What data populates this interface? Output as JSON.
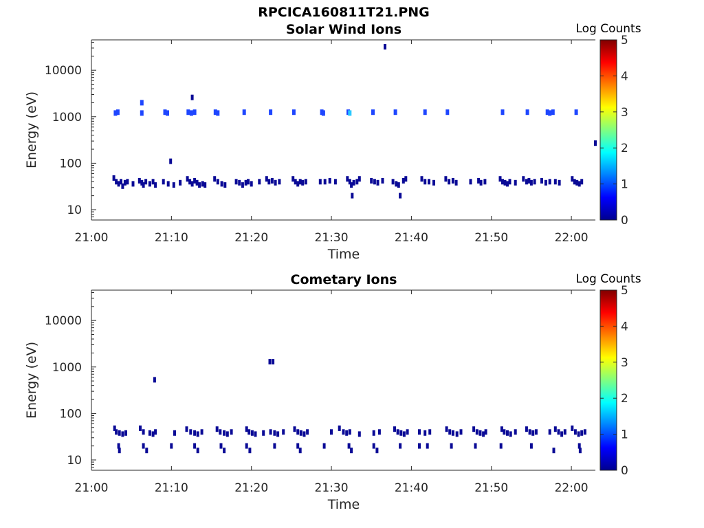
{
  "figure": {
    "filename": "RPCICA160811T21.PNG"
  },
  "colors": {
    "axis": "#262626",
    "level1": "#0a0a96",
    "level2": "#1e46ff",
    "level3": "#28c8ff",
    "colormap": [
      "#00008f",
      "#0000ff",
      "#0080ff",
      "#00ffff",
      "#80ff80",
      "#ffff00",
      "#ff8000",
      "#ff0000",
      "#800000"
    ]
  },
  "chart_data": [
    {
      "type": "heatmap",
      "title": "Solar Wind Ions",
      "xlabel": "Time",
      "ylabel": "Energy (eV)",
      "xticks": [
        "21:00",
        "21:10",
        "21:20",
        "21:30",
        "21:40",
        "21:50",
        "22:00"
      ],
      "xlim_minutes": [
        0,
        63
      ],
      "yticks": [
        {
          "label": "10",
          "value": 10
        },
        {
          "label": "100",
          "value": 100
        },
        {
          "label": "1000",
          "value": 1000
        },
        {
          "label": "10000",
          "value": 10000
        }
      ],
      "ylim": [
        6,
        45000
      ],
      "yscale": "log",
      "colorbar": {
        "title": "Log Counts",
        "range": [
          0,
          5
        ],
        "ticks": [
          "0",
          "1",
          "2",
          "3",
          "4",
          "5"
        ]
      },
      "cells": [
        [
          3.0,
          1200,
          2
        ],
        [
          3.3,
          1250,
          2
        ],
        [
          6.3,
          1200,
          2
        ],
        [
          6.3,
          2000,
          2
        ],
        [
          9.2,
          1250,
          2
        ],
        [
          9.5,
          1200,
          2
        ],
        [
          12.1,
          1250,
          2
        ],
        [
          12.5,
          1200,
          2
        ],
        [
          12.9,
          1250,
          2
        ],
        [
          12.6,
          2600,
          1
        ],
        [
          15.5,
          1250,
          2
        ],
        [
          15.8,
          1200,
          2
        ],
        [
          19.1,
          1250,
          2
        ],
        [
          22.4,
          1250,
          2
        ],
        [
          25.3,
          1250,
          2
        ],
        [
          28.8,
          1250,
          2
        ],
        [
          29.0,
          1200,
          2
        ],
        [
          32.1,
          1250,
          2
        ],
        [
          32.3,
          1200,
          3
        ],
        [
          35.2,
          1250,
          2
        ],
        [
          38.0,
          1250,
          2
        ],
        [
          41.7,
          1250,
          2
        ],
        [
          44.5,
          1250,
          2
        ],
        [
          51.4,
          1250,
          2
        ],
        [
          54.5,
          1250,
          2
        ],
        [
          57.0,
          1250,
          2
        ],
        [
          57.3,
          1200,
          2
        ],
        [
          57.7,
          1250,
          2
        ],
        [
          60.6,
          1250,
          2
        ],
        [
          63.0,
          270,
          1
        ],
        [
          9.9,
          110,
          1
        ],
        [
          36.7,
          32000,
          1
        ],
        [
          2.8,
          48,
          1
        ],
        [
          3.1,
          40,
          1
        ],
        [
          3.4,
          36,
          1
        ],
        [
          3.7,
          40,
          1
        ],
        [
          3.9,
          32,
          1
        ],
        [
          4.2,
          38,
          1
        ],
        [
          4.5,
          40,
          1
        ],
        [
          5.2,
          36,
          1
        ],
        [
          6.0,
          42,
          1
        ],
        [
          6.3,
          38,
          1
        ],
        [
          6.5,
          34,
          1
        ],
        [
          6.8,
          40,
          1
        ],
        [
          7.3,
          36,
          1
        ],
        [
          7.7,
          40,
          1
        ],
        [
          8.0,
          34,
          1
        ],
        [
          9.0,
          40,
          1
        ],
        [
          9.6,
          36,
          1
        ],
        [
          10.3,
          34,
          1
        ],
        [
          11.1,
          38,
          1
        ],
        [
          12.0,
          46,
          1
        ],
        [
          12.3,
          40,
          1
        ],
        [
          12.6,
          36,
          1
        ],
        [
          12.9,
          42,
          1
        ],
        [
          13.2,
          38,
          1
        ],
        [
          13.5,
          34,
          1
        ],
        [
          13.9,
          36,
          1
        ],
        [
          14.2,
          34,
          1
        ],
        [
          15.4,
          46,
          1
        ],
        [
          15.8,
          40,
          1
        ],
        [
          16.3,
          36,
          1
        ],
        [
          16.7,
          34,
          1
        ],
        [
          18.1,
          40,
          1
        ],
        [
          18.5,
          38,
          1
        ],
        [
          18.9,
          34,
          1
        ],
        [
          19.3,
          38,
          1
        ],
        [
          19.6,
          40,
          1
        ],
        [
          20.0,
          36,
          1
        ],
        [
          21.0,
          40,
          1
        ],
        [
          21.9,
          46,
          1
        ],
        [
          22.2,
          40,
          1
        ],
        [
          22.6,
          42,
          1
        ],
        [
          23.0,
          38,
          1
        ],
        [
          23.5,
          40,
          1
        ],
        [
          25.2,
          46,
          1
        ],
        [
          25.5,
          40,
          1
        ],
        [
          25.8,
          36,
          1
        ],
        [
          26.1,
          40,
          1
        ],
        [
          26.4,
          38,
          1
        ],
        [
          26.8,
          40,
          1
        ],
        [
          28.6,
          40,
          1
        ],
        [
          29.2,
          40,
          1
        ],
        [
          29.8,
          42,
          1
        ],
        [
          30.5,
          40,
          1
        ],
        [
          32.0,
          46,
          1
        ],
        [
          32.3,
          40,
          1
        ],
        [
          32.5,
          34,
          1
        ],
        [
          32.8,
          38,
          1
        ],
        [
          32.6,
          20,
          1
        ],
        [
          33.2,
          40,
          1
        ],
        [
          33.5,
          46,
          1
        ],
        [
          35.0,
          42,
          1
        ],
        [
          35.4,
          40,
          1
        ],
        [
          35.8,
          38,
          1
        ],
        [
          36.4,
          42,
          1
        ],
        [
          37.7,
          40,
          1
        ],
        [
          38.1,
          36,
          1
        ],
        [
          38.4,
          34,
          1
        ],
        [
          38.6,
          20,
          1
        ],
        [
          39.0,
          42,
          1
        ],
        [
          39.3,
          46,
          1
        ],
        [
          41.3,
          46,
          1
        ],
        [
          41.7,
          40,
          1
        ],
        [
          42.2,
          40,
          1
        ],
        [
          42.8,
          38,
          1
        ],
        [
          44.3,
          46,
          1
        ],
        [
          44.7,
          40,
          1
        ],
        [
          45.2,
          42,
          1
        ],
        [
          45.6,
          38,
          1
        ],
        [
          47.4,
          40,
          1
        ],
        [
          48.4,
          42,
          1
        ],
        [
          48.7,
          38,
          1
        ],
        [
          49.2,
          40,
          1
        ],
        [
          51.1,
          46,
          1
        ],
        [
          51.4,
          40,
          1
        ],
        [
          51.7,
          38,
          1
        ],
        [
          52.0,
          36,
          1
        ],
        [
          52.3,
          40,
          1
        ],
        [
          53.0,
          38,
          1
        ],
        [
          54.0,
          46,
          1
        ],
        [
          54.4,
          40,
          1
        ],
        [
          54.7,
          42,
          1
        ],
        [
          55.0,
          38,
          1
        ],
        [
          55.4,
          40,
          1
        ],
        [
          56.3,
          42,
          1
        ],
        [
          56.8,
          38,
          1
        ],
        [
          57.3,
          40,
          1
        ],
        [
          58.0,
          40,
          1
        ],
        [
          58.5,
          38,
          1
        ],
        [
          60.1,
          46,
          1
        ],
        [
          60.4,
          40,
          1
        ],
        [
          60.7,
          38,
          1
        ],
        [
          61.0,
          36,
          1
        ],
        [
          61.3,
          40,
          1
        ]
      ]
    },
    {
      "type": "heatmap",
      "title": "Cometary Ions",
      "xlabel": "Time",
      "ylabel": "Energy (eV)",
      "xticks": [
        "21:00",
        "21:10",
        "21:20",
        "21:30",
        "21:40",
        "21:50",
        "22:00"
      ],
      "xlim_minutes": [
        0,
        63
      ],
      "yticks": [
        {
          "label": "10",
          "value": 10
        },
        {
          "label": "100",
          "value": 100
        },
        {
          "label": "1000",
          "value": 1000
        },
        {
          "label": "10000",
          "value": 10000
        }
      ],
      "ylim": [
        6,
        45000
      ],
      "yscale": "log",
      "colorbar": {
        "title": "Log Counts",
        "range": [
          0,
          5
        ],
        "ticks": [
          "0",
          "1",
          "2",
          "3",
          "4",
          "5"
        ]
      },
      "cells": [
        [
          7.9,
          530,
          1
        ],
        [
          22.3,
          1300,
          1
        ],
        [
          22.7,
          1300,
          1
        ],
        [
          2.9,
          48,
          1
        ],
        [
          3.1,
          40,
          1
        ],
        [
          3.5,
          38,
          1
        ],
        [
          3.9,
          36,
          1
        ],
        [
          4.3,
          38,
          1
        ],
        [
          6.1,
          48,
          1
        ],
        [
          6.5,
          40,
          1
        ],
        [
          7.3,
          38,
          1
        ],
        [
          7.7,
          36,
          1
        ],
        [
          8.0,
          40,
          1
        ],
        [
          10.4,
          38,
          1
        ],
        [
          11.9,
          46,
          1
        ],
        [
          12.4,
          40,
          1
        ],
        [
          12.9,
          38,
          1
        ],
        [
          13.3,
          36,
          1
        ],
        [
          13.8,
          40,
          1
        ],
        [
          15.7,
          46,
          1
        ],
        [
          16.1,
          40,
          1
        ],
        [
          16.6,
          38,
          1
        ],
        [
          17.0,
          36,
          1
        ],
        [
          17.5,
          40,
          1
        ],
        [
          19.4,
          46,
          1
        ],
        [
          19.7,
          40,
          1
        ],
        [
          20.1,
          38,
          1
        ],
        [
          20.5,
          36,
          1
        ],
        [
          21.5,
          38,
          1
        ],
        [
          22.4,
          40,
          1
        ],
        [
          22.9,
          38,
          1
        ],
        [
          23.3,
          36,
          1
        ],
        [
          24.0,
          40,
          1
        ],
        [
          25.4,
          46,
          1
        ],
        [
          25.8,
          40,
          1
        ],
        [
          26.2,
          38,
          1
        ],
        [
          26.6,
          36,
          1
        ],
        [
          27.0,
          40,
          1
        ],
        [
          30.0,
          40,
          1
        ],
        [
          31.0,
          48,
          1
        ],
        [
          31.5,
          40,
          1
        ],
        [
          31.9,
          38,
          1
        ],
        [
          32.3,
          40,
          1
        ],
        [
          33.5,
          36,
          1
        ],
        [
          35.3,
          38,
          1
        ],
        [
          36.0,
          40,
          1
        ],
        [
          37.9,
          46,
          1
        ],
        [
          38.3,
          40,
          1
        ],
        [
          38.7,
          38,
          1
        ],
        [
          39.1,
          36,
          1
        ],
        [
          39.5,
          40,
          1
        ],
        [
          41.0,
          40,
          1
        ],
        [
          41.7,
          38,
          1
        ],
        [
          42.3,
          40,
          1
        ],
        [
          44.4,
          46,
          1
        ],
        [
          44.8,
          40,
          1
        ],
        [
          45.2,
          38,
          1
        ],
        [
          45.7,
          36,
          1
        ],
        [
          46.2,
          40,
          1
        ],
        [
          47.8,
          46,
          1
        ],
        [
          48.2,
          40,
          1
        ],
        [
          48.6,
          38,
          1
        ],
        [
          49.0,
          36,
          1
        ],
        [
          49.3,
          40,
          1
        ],
        [
          51.3,
          46,
          1
        ],
        [
          51.6,
          40,
          1
        ],
        [
          52.0,
          38,
          1
        ],
        [
          52.4,
          36,
          1
        ],
        [
          53.0,
          40,
          1
        ],
        [
          54.4,
          46,
          1
        ],
        [
          54.8,
          40,
          1
        ],
        [
          55.2,
          38,
          1
        ],
        [
          55.6,
          40,
          1
        ],
        [
          57.3,
          40,
          1
        ],
        [
          58.0,
          46,
          1
        ],
        [
          58.4,
          40,
          1
        ],
        [
          58.8,
          36,
          1
        ],
        [
          59.2,
          40,
          1
        ],
        [
          60.1,
          48,
          1
        ],
        [
          60.5,
          40,
          1
        ],
        [
          60.9,
          36,
          1
        ],
        [
          61.3,
          38,
          1
        ],
        [
          61.7,
          40,
          1
        ],
        [
          3.4,
          20,
          1
        ],
        [
          3.5,
          16,
          1
        ],
        [
          6.5,
          20,
          1
        ],
        [
          6.9,
          16,
          1
        ],
        [
          10.0,
          20,
          1
        ],
        [
          12.9,
          20,
          1
        ],
        [
          13.3,
          16,
          1
        ],
        [
          16.2,
          20,
          1
        ],
        [
          16.6,
          16,
          1
        ],
        [
          19.4,
          20,
          1
        ],
        [
          19.8,
          16,
          1
        ],
        [
          22.9,
          20,
          1
        ],
        [
          25.8,
          20,
          1
        ],
        [
          26.1,
          16,
          1
        ],
        [
          29.1,
          20,
          1
        ],
        [
          32.2,
          20,
          1
        ],
        [
          32.5,
          16,
          1
        ],
        [
          35.3,
          20,
          1
        ],
        [
          35.7,
          16,
          1
        ],
        [
          38.6,
          20,
          1
        ],
        [
          41.0,
          20,
          1
        ],
        [
          42.0,
          20,
          1
        ],
        [
          45.0,
          20,
          1
        ],
        [
          48.0,
          20,
          1
        ],
        [
          51.2,
          20,
          1
        ],
        [
          55.0,
          20,
          1
        ],
        [
          57.8,
          16,
          1
        ],
        [
          61.0,
          20,
          1
        ],
        [
          61.1,
          16,
          1
        ]
      ]
    }
  ]
}
